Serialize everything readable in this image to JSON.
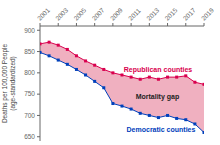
{
  "chart_data": {
    "type": "line",
    "x": [
      2001,
      2002,
      2003,
      2004,
      2005,
      2006,
      2007,
      2008,
      2009,
      2010,
      2011,
      2012,
      2013,
      2014,
      2015,
      2016,
      2017,
      2018,
      2019
    ],
    "series": [
      {
        "name": "Republican counties",
        "color": "#d9004e",
        "values": [
          868,
          872,
          865,
          855,
          840,
          828,
          818,
          808,
          800,
          795,
          790,
          785,
          790,
          785,
          790,
          790,
          793,
          778,
          773
        ]
      },
      {
        "name": "Democratic counties",
        "color": "#0040bb",
        "values": [
          848,
          840,
          830,
          820,
          808,
          795,
          780,
          765,
          728,
          722,
          715,
          705,
          700,
          695,
          700,
          693,
          690,
          680,
          660
        ]
      }
    ],
    "color": "#f0b0c0",
    "ylabel": "Deaths per 100,000 People\n(age-standardized)",
    "xlim": [
      2001,
      2019
    ],
    "xticks": [
      2001,
      2003,
      2005,
      2007,
      2009,
      2011,
      2013,
      2015,
      2017,
      2019
    ],
    "ylim": [
      640,
      910
    ],
    "yticks": [
      650,
      700,
      750,
      800,
      850,
      900
    ],
    "marker": "square",
    "grid": false,
    "annotations": [
      {
        "text": "Republican counties",
        "x": 2010.2,
        "y": 807,
        "color": "#d9004e"
      },
      {
        "text": "Mortality gap",
        "x": 2011.5,
        "y": 745,
        "color": "#222222"
      },
      {
        "text": "Democratic counties",
        "x": 2010.5,
        "y": 668,
        "color": "#0040bb"
      }
    ]
  }
}
